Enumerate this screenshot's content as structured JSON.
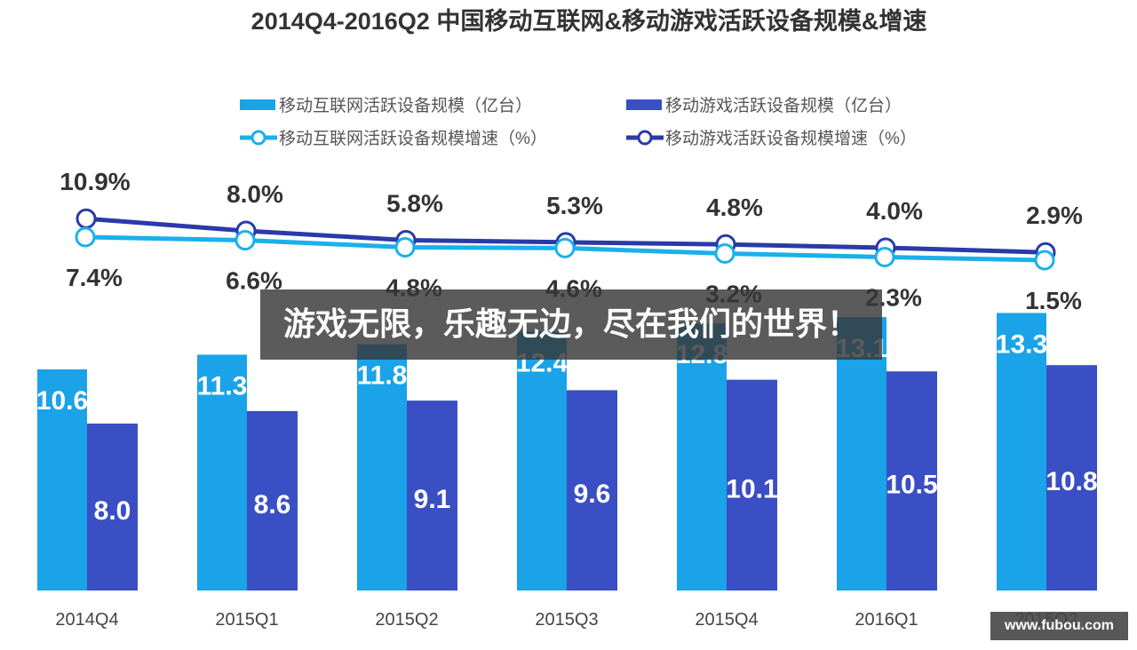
{
  "chart_data": {
    "type": "bar",
    "title": "2014Q4-2016Q2 中国移动互联网&移动游戏活跃设备规模&增速",
    "categories": [
      "2014Q4",
      "2015Q1",
      "2015Q2",
      "2015Q3",
      "2015Q4",
      "2016Q1",
      "2016Q2"
    ],
    "series": [
      {
        "name": "移动互联网活跃设备规模（亿台）",
        "kind": "bar",
        "color": "#1aa3e8",
        "values": [
          10.6,
          11.3,
          11.8,
          12.4,
          12.8,
          13.1,
          13.3
        ]
      },
      {
        "name": "移动游戏活跃设备规模（亿台）",
        "kind": "bar",
        "color": "#3a4fc4",
        "values": [
          8.0,
          8.6,
          9.1,
          9.6,
          10.1,
          10.5,
          10.8
        ]
      },
      {
        "name": "移动互联网活跃设备规模增速（%）",
        "kind": "line",
        "color": "#1ab0ea",
        "values": [
          7.4,
          6.6,
          4.8,
          4.6,
          3.2,
          2.3,
          1.5
        ],
        "labels": [
          "7.4%",
          "6.6%",
          "4.8%",
          "4.6%",
          "3.2%",
          "2.3%",
          "1.5%"
        ]
      },
      {
        "name": "移动游戏活跃设备规模增速（%）",
        "kind": "line",
        "color": "#2a3aa8",
        "values": [
          10.9,
          8.0,
          5.8,
          5.3,
          4.8,
          4.0,
          2.9
        ],
        "labels": [
          "10.9%",
          "8.0%",
          "5.8%",
          "5.3%",
          "4.8%",
          "4.0%",
          "2.9%"
        ]
      }
    ],
    "bar_labels": [
      [
        "10.6",
        "11.3",
        "11.8",
        "12.4",
        "12.8",
        "13.1",
        "13.3"
      ],
      [
        "8.0",
        "8.6",
        "9.1",
        "9.6",
        "10.1",
        "10.5",
        "10.8"
      ]
    ],
    "legend_placement": "top",
    "grid": false
  },
  "overlay": {
    "banner_text": "游戏无限，乐趣无边，尽在我们的世界！",
    "watermark": "www.fubou.com"
  }
}
